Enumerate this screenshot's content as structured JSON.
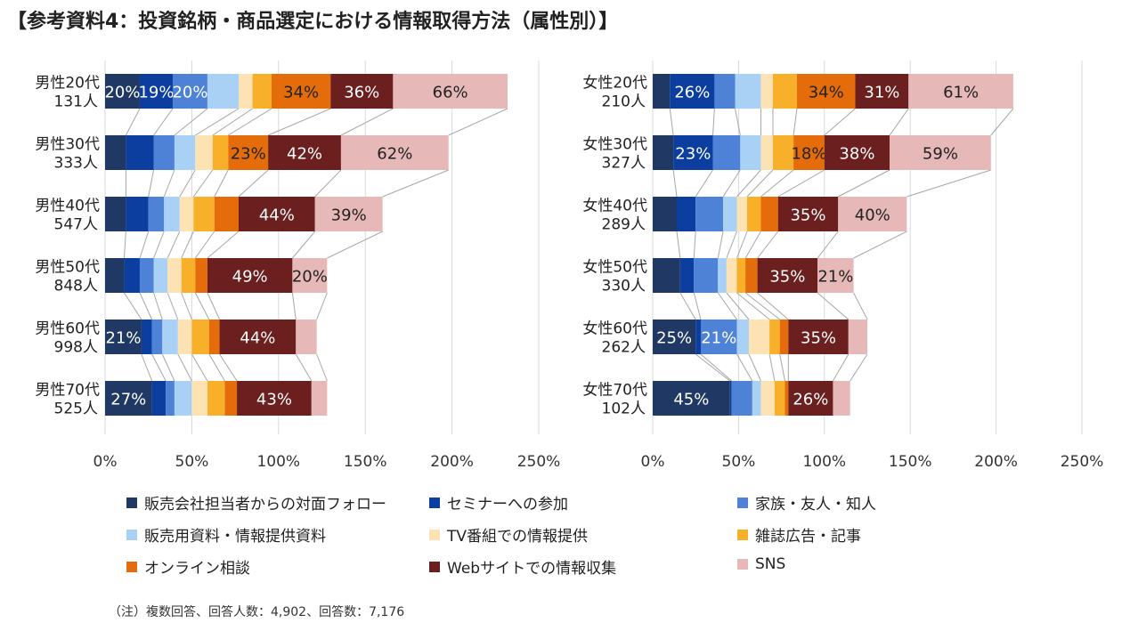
{
  "title": "【参考資料4：投資銘柄・商品選定における情報取得方法（属性別）】",
  "note": "（注）複数回答、回答人数：4,902、回答数：7,176",
  "colors": [
    "#1F3864",
    "#0B3E9E",
    "#4E82D6",
    "#A9D0F5",
    "#FDE2B4",
    "#F8B02A",
    "#E46C0A",
    "#6B1F1F",
    "#E6B8B7"
  ],
  "chart_data": [
    {
      "type": "bar",
      "orientation": "horizontal",
      "stacked": true,
      "categories": [
        [
          "男性20代",
          "131人"
        ],
        [
          "男性30代",
          "333人"
        ],
        [
          "男性40代",
          "547人"
        ],
        [
          "男性50代",
          "848人"
        ],
        [
          "男性60代",
          "998人"
        ],
        [
          "男性70代",
          "525人"
        ]
      ],
      "xlim": [
        0,
        250
      ],
      "xticks": [
        "0%",
        "50%",
        "100%",
        "150%",
        "200%",
        "250%"
      ],
      "series": [
        {
          "name": "販売会社担当者からの対面フォロー",
          "values": [
            20,
            12,
            12,
            11,
            21,
            27
          ]
        },
        {
          "name": "セミナーへの参加",
          "values": [
            19,
            16,
            13,
            9,
            6,
            8
          ]
        },
        {
          "name": "家族・友人・知人",
          "values": [
            20,
            12,
            9,
            8,
            6,
            5
          ]
        },
        {
          "name": "販売用資料・情報提供資料",
          "values": [
            18,
            12,
            9,
            8,
            9,
            10
          ]
        },
        {
          "name": "TV番組での情報提供",
          "values": [
            8,
            10,
            8,
            8,
            8,
            9
          ]
        },
        {
          "name": "雑誌広告・記事",
          "values": [
            11,
            9,
            12,
            8,
            10,
            10
          ]
        },
        {
          "name": "オンライン相談",
          "values": [
            34,
            23,
            14,
            7,
            6,
            7
          ]
        },
        {
          "name": "Webサイトでの情報収集",
          "values": [
            36,
            42,
            44,
            49,
            44,
            43
          ]
        },
        {
          "name": "SNS",
          "values": [
            66,
            62,
            39,
            20,
            12,
            9
          ]
        }
      ],
      "labels": [
        [
          "20%",
          "19%",
          "20%",
          "",
          "",
          "",
          "34%",
          "36%",
          "66%"
        ],
        [
          "",
          "",
          "",
          "",
          "",
          "",
          "23%",
          "42%",
          "62%"
        ],
        [
          "",
          "",
          "",
          "",
          "",
          "",
          "",
          "44%",
          "39%"
        ],
        [
          "",
          "",
          "",
          "",
          "",
          "",
          "",
          "49%",
          "20%"
        ],
        [
          "21%",
          "",
          "",
          "",
          "",
          "",
          "",
          "44%",
          ""
        ],
        [
          "27%",
          "",
          "",
          "",
          "",
          "",
          "",
          "43%",
          ""
        ]
      ]
    },
    {
      "type": "bar",
      "orientation": "horizontal",
      "stacked": true,
      "categories": [
        [
          "女性20代",
          "210人"
        ],
        [
          "女性30代",
          "327人"
        ],
        [
          "女性40代",
          "289人"
        ],
        [
          "女性50代",
          "330人"
        ],
        [
          "女性60代",
          "262人"
        ],
        [
          "女性70代",
          "102人"
        ]
      ],
      "xlim": [
        0,
        250
      ],
      "xticks": [
        "0%",
        "50%",
        "100%",
        "150%",
        "200%",
        "250%"
      ],
      "series": [
        {
          "name": "販売会社担当者からの対面フォロー",
          "values": [
            10,
            12,
            14,
            16,
            25,
            45
          ]
        },
        {
          "name": "セミナーへの参加",
          "values": [
            26,
            23,
            11,
            8,
            3,
            1
          ]
        },
        {
          "name": "家族・友人・知人",
          "values": [
            12,
            16,
            16,
            14,
            21,
            12
          ]
        },
        {
          "name": "販売用資料・情報提供資料",
          "values": [
            15,
            12,
            8,
            5,
            7,
            5
          ]
        },
        {
          "name": "TV番組での情報提供",
          "values": [
            7,
            7,
            6,
            6,
            12,
            8
          ]
        },
        {
          "name": "雑誌広告・記事",
          "values": [
            14,
            12,
            8,
            5,
            6,
            6
          ]
        },
        {
          "name": "オンライン相談",
          "values": [
            34,
            18,
            10,
            7,
            5,
            2
          ]
        },
        {
          "name": "Webサイトでの情報収集",
          "values": [
            31,
            38,
            35,
            35,
            35,
            26
          ]
        },
        {
          "name": "SNS",
          "values": [
            61,
            59,
            40,
            21,
            11,
            10
          ]
        }
      ],
      "labels": [
        [
          "",
          "26%",
          "",
          "",
          "",
          "",
          "34%",
          "31%",
          "61%"
        ],
        [
          "",
          "23%",
          "",
          "",
          "",
          "",
          "18%",
          "38%",
          "59%"
        ],
        [
          "",
          "",
          "",
          "",
          "",
          "",
          "",
          "35%",
          "40%"
        ],
        [
          "",
          "",
          "",
          "",
          "",
          "",
          "",
          "35%",
          "21%"
        ],
        [
          "25%",
          "",
          "21%",
          "",
          "",
          "",
          "",
          "35%",
          ""
        ],
        [
          "45%",
          "",
          "",
          "",
          "",
          "",
          "",
          "26%",
          ""
        ]
      ]
    }
  ]
}
